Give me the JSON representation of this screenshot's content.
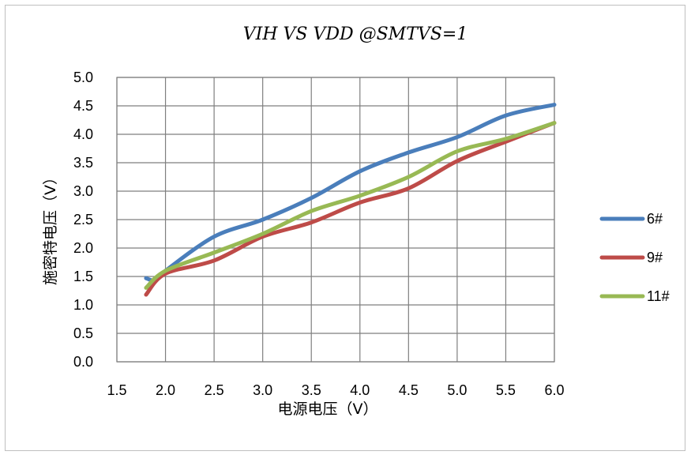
{
  "chart_data": {
    "type": "line",
    "title": "VIH VS VDD @SMTVS=1",
    "xlabel": "电源电压（V）",
    "ylabel": "施密特电压（V）",
    "xlim": [
      1.5,
      6.0
    ],
    "ylim": [
      0.0,
      5.0
    ],
    "x_ticks": [
      "1.5",
      "2.0",
      "2.5",
      "3.0",
      "3.5",
      "4.0",
      "4.5",
      "5.0",
      "5.5",
      "6.0"
    ],
    "y_ticks": [
      "0.0",
      "0.5",
      "1.0",
      "1.5",
      "2.0",
      "2.5",
      "3.0",
      "3.5",
      "4.0",
      "4.5",
      "5.0"
    ],
    "grid": true,
    "legend_position": "right",
    "series": [
      {
        "name": "6#",
        "color": "#4a7ebb",
        "x": [
          1.8,
          1.9,
          2.0,
          2.5,
          3.0,
          3.5,
          4.0,
          4.5,
          5.0,
          5.5,
          6.0
        ],
        "y": [
          1.47,
          1.43,
          1.6,
          2.2,
          2.5,
          2.88,
          3.35,
          3.68,
          3.95,
          4.33,
          4.52
        ]
      },
      {
        "name": "9#",
        "color": "#be4b48",
        "x": [
          1.8,
          2.0,
          2.5,
          3.0,
          3.5,
          4.0,
          4.5,
          5.0,
          5.5,
          6.0
        ],
        "y": [
          1.18,
          1.55,
          1.78,
          2.2,
          2.45,
          2.8,
          3.05,
          3.53,
          3.87,
          4.2
        ]
      },
      {
        "name": "11#",
        "color": "#98b954",
        "x": [
          1.8,
          2.0,
          2.5,
          3.0,
          3.5,
          4.0,
          4.5,
          5.0,
          5.5,
          6.0
        ],
        "y": [
          1.3,
          1.6,
          1.92,
          2.25,
          2.65,
          2.92,
          3.25,
          3.7,
          3.92,
          4.2
        ]
      }
    ]
  }
}
